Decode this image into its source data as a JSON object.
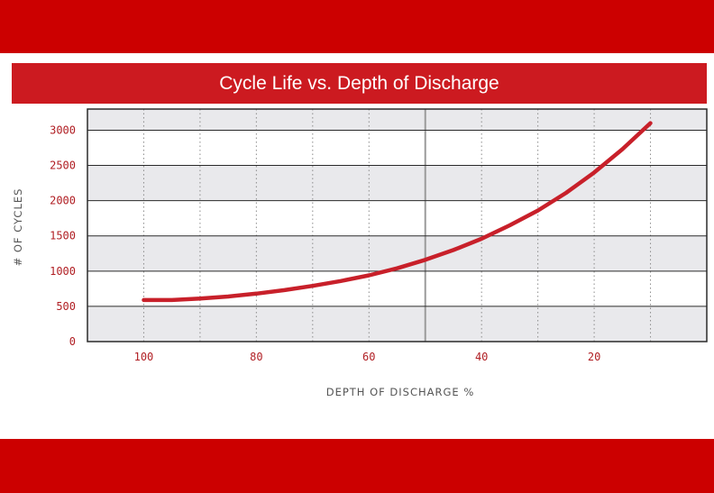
{
  "colors": {
    "band": "#cc0000",
    "title_bg": "#cc1a20",
    "curve": "#c8202a",
    "tick_text": "#b01e23",
    "axis_label": "#555555",
    "stripe": "#e9e9ec"
  },
  "chart_data": {
    "type": "line",
    "title": "Cycle Life vs. Depth of Discharge",
    "xlabel": "DEPTH OF DISCHARGE %",
    "ylabel": "# OF CYCLES",
    "x_reversed": true,
    "xlim": [
      110,
      0
    ],
    "ylim": [
      0,
      3300
    ],
    "x_ticks": [
      "100",
      "80",
      "60",
      "40",
      "20"
    ],
    "y_ticks": [
      "0",
      "500",
      "1000",
      "1500",
      "2000",
      "2500",
      "3000"
    ],
    "grid": true,
    "series": [
      {
        "name": "Cycle Life",
        "x": [
          100,
          95,
          90,
          85,
          80,
          75,
          70,
          65,
          60,
          55,
          50,
          45,
          40,
          35,
          30,
          25,
          20,
          15,
          10
        ],
        "y": [
          590,
          590,
          610,
          640,
          680,
          730,
          790,
          860,
          940,
          1040,
          1160,
          1300,
          1460,
          1650,
          1860,
          2110,
          2400,
          2730,
          3100
        ]
      }
    ]
  }
}
